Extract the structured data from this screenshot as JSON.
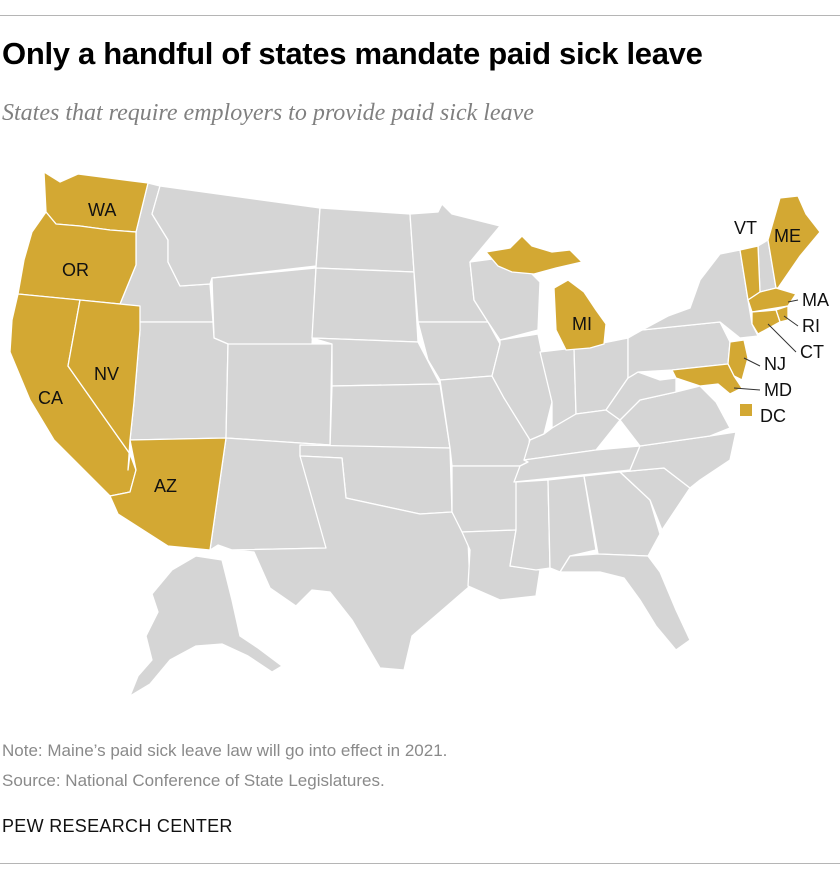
{
  "title": "Only a handful of states mandate paid sick leave",
  "subtitle": "States that require employers to provide paid sick leave",
  "note": "Note: Maine’s paid sick leave law will go into effect in 2021.",
  "source": "Source: National Conference of State Legislatures.",
  "brand": "PEW RESEARCH CENTER",
  "colors": {
    "mandate": "#d3a833",
    "no_mandate": "#d5d5d5",
    "border": "#ffffff"
  },
  "map_data": {
    "states_with_mandate": [
      "WA",
      "OR",
      "CA",
      "NV",
      "AZ",
      "MI",
      "VT",
      "ME",
      "MA",
      "RI",
      "CT",
      "NJ",
      "MD",
      "DC"
    ],
    "labels": {
      "WA": "WA",
      "OR": "OR",
      "CA": "CA",
      "NV": "NV",
      "AZ": "AZ",
      "MI": "MI",
      "VT": "VT",
      "ME": "ME",
      "MA": "MA",
      "RI": "RI",
      "CT": "CT",
      "NJ": "NJ",
      "MD": "MD",
      "DC": "DC"
    }
  }
}
